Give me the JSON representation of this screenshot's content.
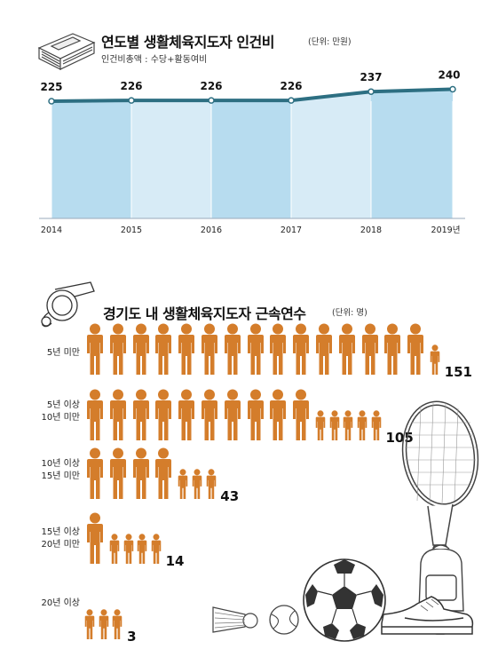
{
  "colors": {
    "area_dark": "#b7dcef",
    "area_light": "#d7ebf6",
    "line": "#2d6f82",
    "figure": "#d47d2b",
    "ink": "#222222"
  },
  "chart_data": [
    {
      "type": "area",
      "title": "연도별 생활체육지도자 인건비",
      "unit_note": "(단위: 만원)",
      "subtitle": "인건비총액 : 수당+활동여비",
      "categories": [
        "2014",
        "2015",
        "2016",
        "2017",
        "2018",
        "2019년"
      ],
      "values": [
        225,
        226,
        226,
        226,
        237,
        240
      ],
      "value_labels": [
        "225",
        "226",
        "226",
        "226",
        "237",
        "240"
      ],
      "grid": false,
      "legend": "none"
    },
    {
      "type": "bar",
      "style": "pictogram",
      "title": "경기도 내 생활체육지도자 근속연수",
      "unit_note": "(단위: 명)",
      "categories": [
        [
          "5년 미만"
        ],
        [
          "5년 이상",
          "10년 미만"
        ],
        [
          "10년 이상",
          "15년 미만"
        ],
        [
          "15년 이상",
          "20년 미만"
        ],
        [
          "20년 이상"
        ]
      ],
      "values": [
        151,
        105,
        43,
        14,
        3
      ],
      "value_labels": [
        "151",
        "105",
        "43",
        "14",
        "3"
      ],
      "icons": [
        {
          "large": 15,
          "small": 1
        },
        {
          "large": 10,
          "small": 5
        },
        {
          "large": 4,
          "small": 3
        },
        {
          "large": 1,
          "small": 4
        },
        {
          "large": 0,
          "small": 3
        }
      ]
    }
  ],
  "decorations": [
    "money-stack-icon",
    "whistle-icon",
    "tennis-racket-icon",
    "soccer-ball-icon",
    "shuttlecock-icon",
    "tennis-ball-icon",
    "sneaker-icon",
    "backpack-icon"
  ]
}
